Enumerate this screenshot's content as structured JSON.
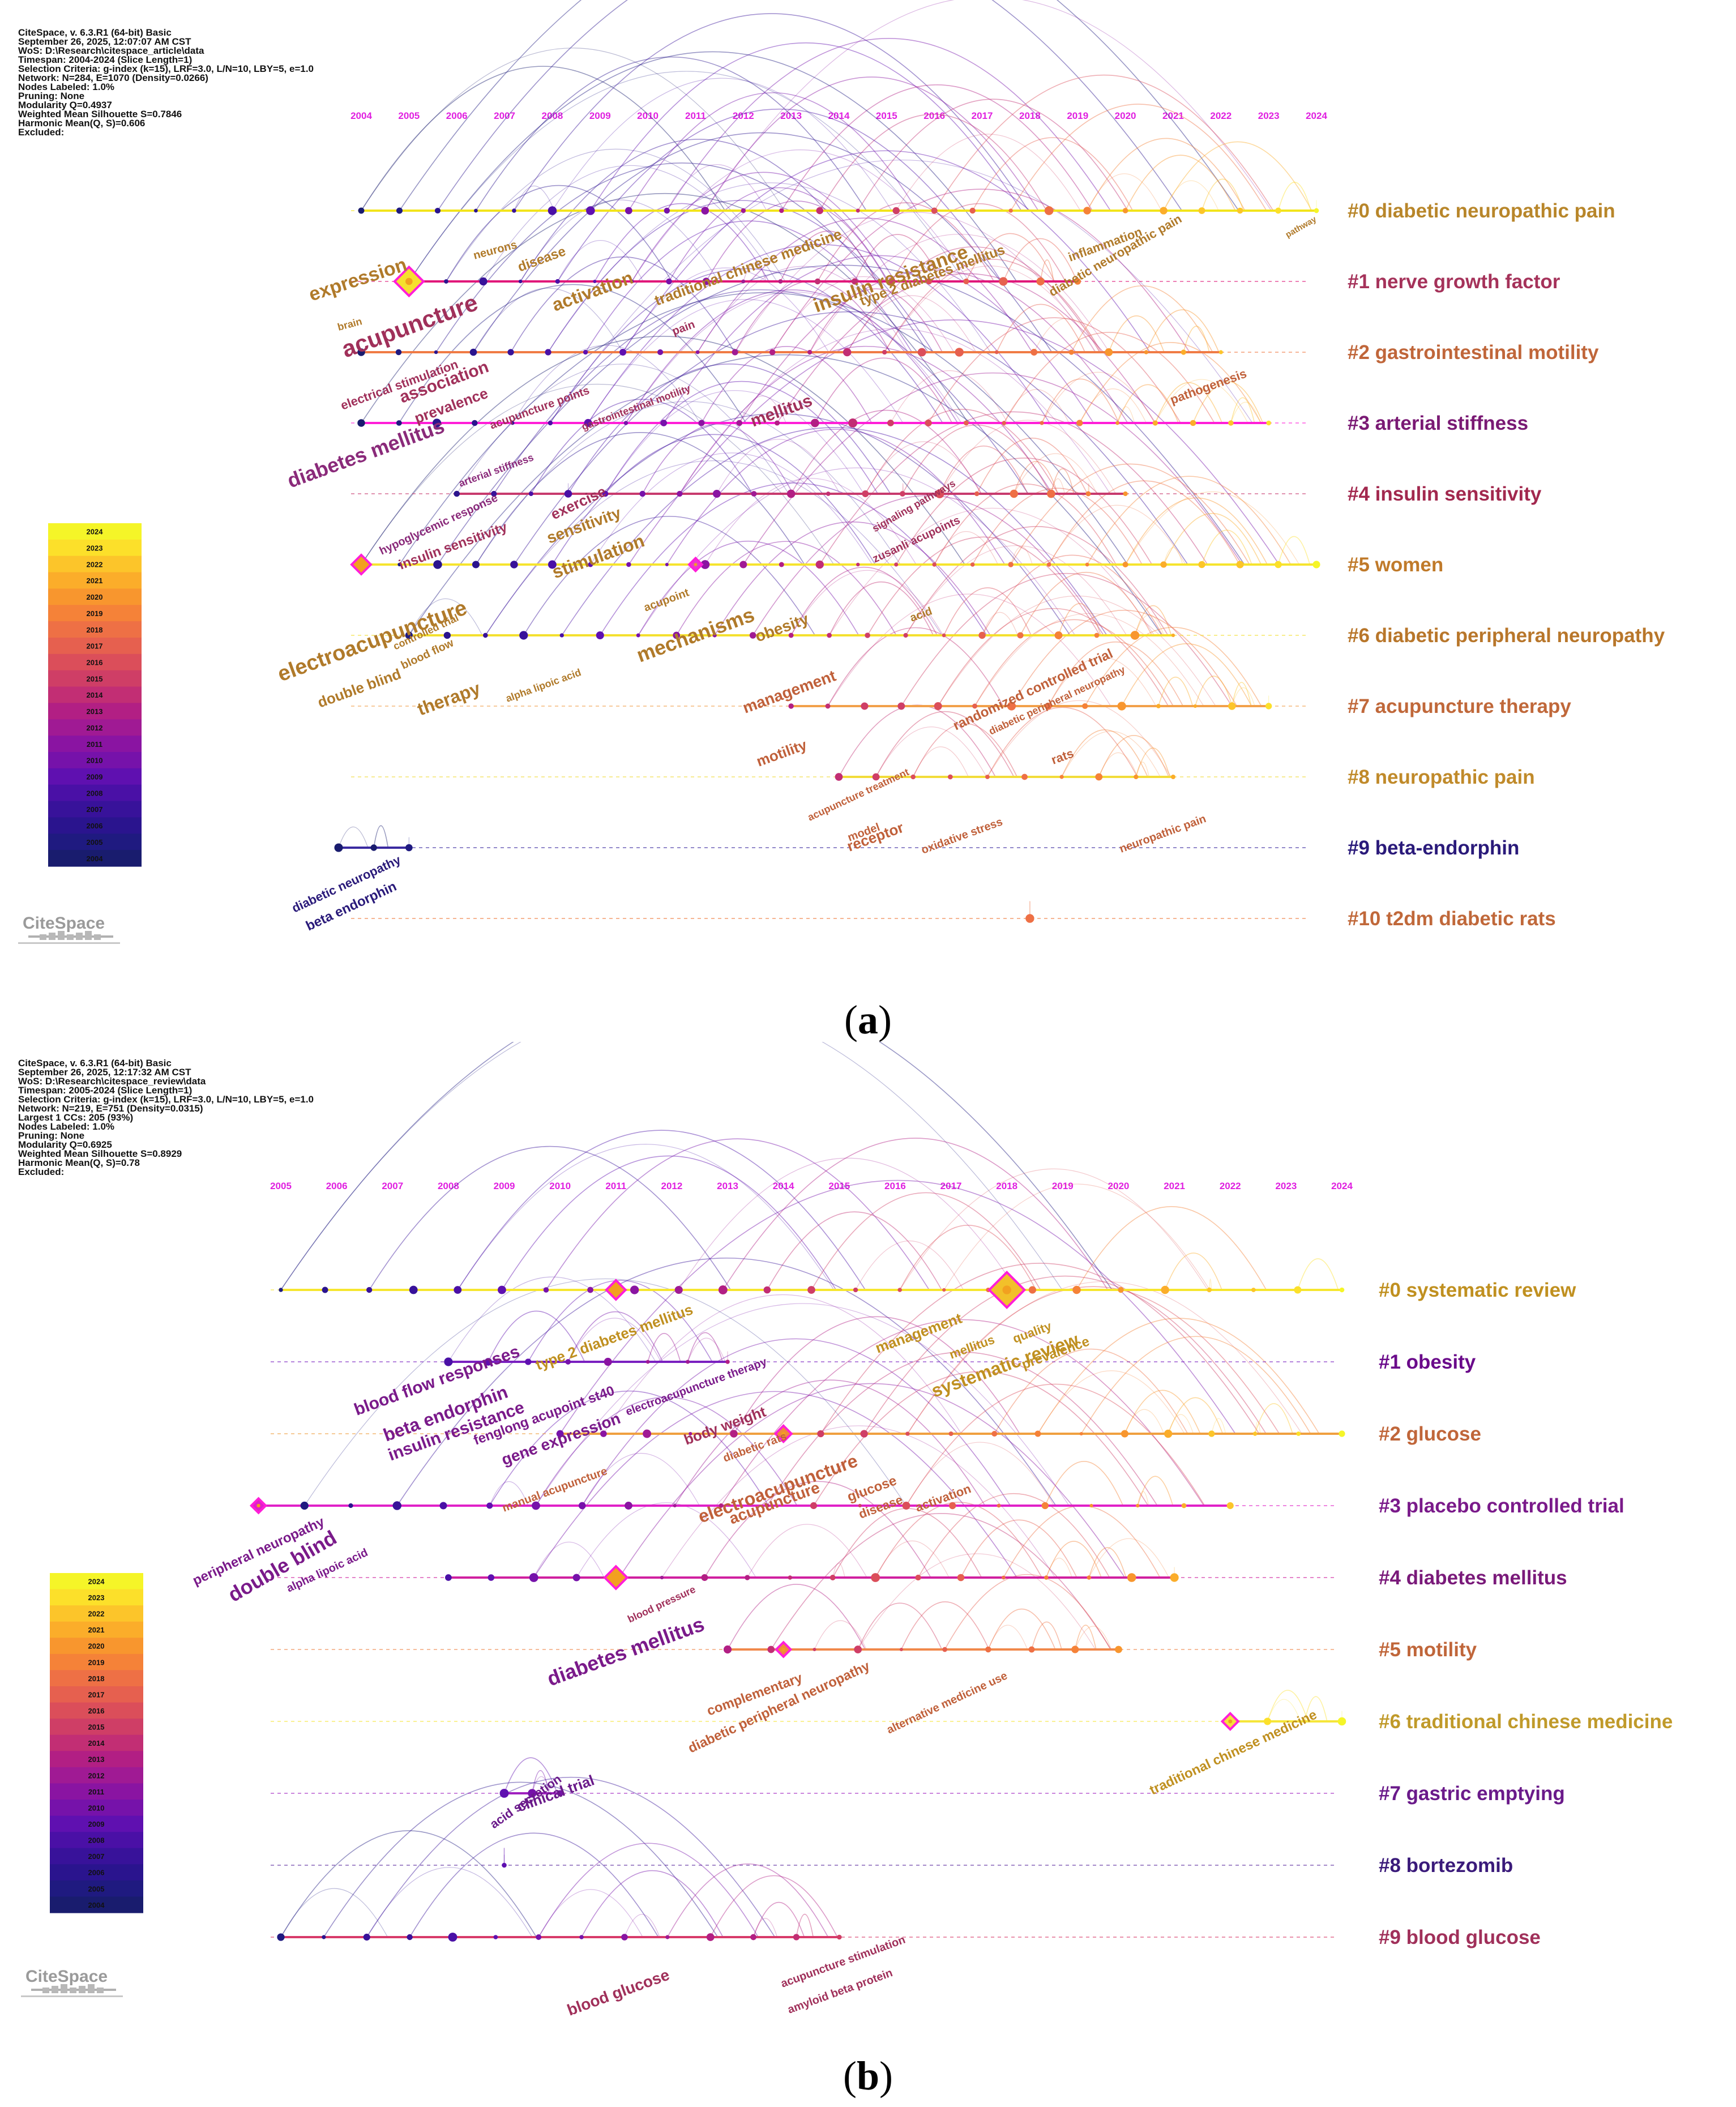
{
  "panels": {
    "a": {
      "label": "a",
      "meta": [
        "CiteSpace, v. 6.3.R1 (64-bit) Basic",
        "September 26, 2025, 12:07:07 AM CST",
        "WoS: D:\\Research\\citespace_article\\data",
        "Timespan: 2004-2024 (Slice Length=1)",
        "Selection Criteria: g-index (k=15), LRF=3.0, L/N=10, LBY=5, e=1.0",
        "Network: N=284, E=1070 (Density=0.0266)",
        "Nodes Labeled: 1.0%",
        "Pruning: None",
        "Modularity Q=0.4937",
        "Weighted Mean Silhouette S=0.7846",
        "Harmonic Mean(Q, S)=0.606",
        "Excluded:"
      ],
      "years": [
        "2004",
        "2005",
        "2006",
        "2007",
        "2008",
        "2009",
        "2010",
        "2011",
        "2012",
        "2013",
        "2014",
        "2015",
        "2016",
        "2017",
        "2018",
        "2019",
        "2020",
        "2021",
        "2022",
        "2023",
        "2024"
      ],
      "clusters": [
        {
          "label": "#0 diabetic neuropathic pain",
          "color": "#b8862a",
          "line": "#f2e41c",
          "start": 0,
          "end": 20
        },
        {
          "label": "#1 nerve growth factor",
          "color": "#a5325a",
          "line": "#e0187a",
          "start": 1,
          "end": 15
        },
        {
          "label": "#2 gastrointestinal motility",
          "color": "#c0663a",
          "line": "#f07b45",
          "start": 0,
          "end": 18
        },
        {
          "label": "#3 arterial stiffness",
          "color": "#7a1a74",
          "line": "#ff1ed8",
          "start": 0,
          "end": 19
        },
        {
          "label": "#4 insulin sensitivity",
          "color": "#a2284e",
          "line": "#c83a6e",
          "start": 2,
          "end": 16
        },
        {
          "label": "#5 women",
          "color": "#c07a2a",
          "line": "#f6e42e",
          "start": 0,
          "end": 20
        },
        {
          "label": "#6 diabetic peripheral neuropathy",
          "color": "#b8762a",
          "line": "#f4e02e",
          "start": 1,
          "end": 17
        },
        {
          "label": "#7 acupuncture therapy",
          "color": "#c0683a",
          "line": "#f2a04a",
          "start": 9,
          "end": 19
        },
        {
          "label": "#8 neuropathic pain",
          "color": "#c08a2a",
          "line": "#f2dc3a",
          "start": 10,
          "end": 17
        },
        {
          "label": "#9 beta-endorphin",
          "color": "#2a1a7a",
          "line": "#3a2aa0",
          "start": -1,
          "end": 1
        },
        {
          "label": "#10 t2dm diabetic rats",
          "color": "#c0683a",
          "line": "#f07a3a",
          "start": 14,
          "end": 14
        }
      ],
      "keywords": [
        {
          "text": "expression",
          "color": "#b07a2a"
        },
        {
          "text": "brain",
          "color": "#b07a2a"
        },
        {
          "text": "neurons",
          "color": "#b07a2a"
        },
        {
          "text": "disease",
          "color": "#b07a2a"
        },
        {
          "text": "activation",
          "color": "#b07a2a"
        },
        {
          "text": "traditional chinese medicine",
          "color": "#b07a2a"
        },
        {
          "text": "insulin resistance",
          "color": "#b07a2a"
        },
        {
          "text": "type 2 diabetes mellitus",
          "color": "#b07a2a"
        },
        {
          "text": "inflammation",
          "color": "#b07a2a"
        },
        {
          "text": "diabetic neuropathic pain",
          "color": "#b07a2a"
        },
        {
          "text": "pathway",
          "color": "#b07a2a"
        },
        {
          "text": "acupuncture",
          "color": "#a0305a"
        },
        {
          "text": "electrical stimulation",
          "color": "#a0305a"
        },
        {
          "text": "association",
          "color": "#a0305a"
        },
        {
          "text": "prevalence",
          "color": "#a0305a"
        },
        {
          "text": "acupuncture points",
          "color": "#a0305a"
        },
        {
          "text": "gastrointestinal motility",
          "color": "#a0305a"
        },
        {
          "text": "pain",
          "color": "#a0305a"
        },
        {
          "text": "mellitus",
          "color": "#a0305a"
        },
        {
          "text": "pathogenesis",
          "color": "#c0603a"
        },
        {
          "text": "diabetes mellitus",
          "color": "#8a2a7a"
        },
        {
          "text": "arterial stiffness",
          "color": "#8a2a7a"
        },
        {
          "text": "hypoglycemic response",
          "color": "#8a2a7a"
        },
        {
          "text": "insulin sensitivity",
          "color": "#a0305a"
        },
        {
          "text": "exercise",
          "color": "#a0305a"
        },
        {
          "text": "sensitivity",
          "color": "#b07a2a"
        },
        {
          "text": "stimulation",
          "color": "#b07a2a"
        },
        {
          "text": "signaling pathways",
          "color": "#a0305a"
        },
        {
          "text": "zusanli acupoints",
          "color": "#a0305a"
        },
        {
          "text": "electroacupuncture",
          "color": "#b07a2a"
        },
        {
          "text": "acupoint",
          "color": "#b07a2a"
        },
        {
          "text": "mechanisms",
          "color": "#b07a2a"
        },
        {
          "text": "obesity",
          "color": "#b07a2a"
        },
        {
          "text": "acid",
          "color": "#b07a2a"
        },
        {
          "text": "controlled trial",
          "color": "#b07a2a"
        },
        {
          "text": "blood flow",
          "color": "#b07a2a"
        },
        {
          "text": "double blind",
          "color": "#b07a2a"
        },
        {
          "text": "therapy",
          "color": "#b07a2a"
        },
        {
          "text": "alpha lipoic acid",
          "color": "#b07a2a"
        },
        {
          "text": "management",
          "color": "#c0603a"
        },
        {
          "text": "randomized controlled trial",
          "color": "#c0603a"
        },
        {
          "text": "diabetic peripheral neuropathy",
          "color": "#c0603a"
        },
        {
          "text": "motility",
          "color": "#c0603a"
        },
        {
          "text": "acupuncture treatment",
          "color": "#c0603a"
        },
        {
          "text": "model",
          "color": "#c0603a"
        },
        {
          "text": "receptor",
          "color": "#c0603a"
        },
        {
          "text": "oxidative stress",
          "color": "#c0603a"
        },
        {
          "text": "rats",
          "color": "#c0603a"
        },
        {
          "text": "neuropathic pain",
          "color": "#c0603a"
        },
        {
          "text": "diabetic neuropathy",
          "color": "#2a1a7a"
        },
        {
          "text": "beta endorphin",
          "color": "#2a1a7a"
        }
      ]
    },
    "b": {
      "label": "b",
      "meta": [
        "CiteSpace, v. 6.3.R1 (64-bit) Basic",
        "September 26, 2025, 12:17:32 AM CST",
        "WoS: D:\\Research\\citespace_review\\data",
        "Timespan: 2005-2024 (Slice Length=1)",
        "Selection Criteria: g-index (k=15), LRF=3.0, L/N=10, LBY=5, e=1.0",
        "Network: N=219, E=751 (Density=0.0315)",
        "Largest 1 CCs: 205 (93%)",
        "Nodes Labeled: 1.0%",
        "Pruning: None",
        "Modularity Q=0.6925",
        "Weighted Mean Silhouette S=0.8929",
        "Harmonic Mean(Q, S)=0.78",
        "Excluded:"
      ],
      "years": [
        "2005",
        "2006",
        "2007",
        "2008",
        "2009",
        "2010",
        "2011",
        "2012",
        "2013",
        "2014",
        "2015",
        "2016",
        "2017",
        "2018",
        "2019",
        "2020",
        "2021",
        "2022",
        "2023",
        "2024"
      ],
      "clusters": [
        {
          "label": "#0 systematic review",
          "color": "#c09020",
          "line": "#f6e62e",
          "start": 0,
          "end": 19
        },
        {
          "label": "#1 obesity",
          "color": "#6a0a8a",
          "line": "#7a20c0",
          "start": 3,
          "end": 8
        },
        {
          "label": "#2 glucose",
          "color": "#c0663a",
          "line": "#f0a040",
          "start": 5,
          "end": 19
        },
        {
          "label": "#3 placebo controlled trial",
          "color": "#7a1a8a",
          "line": "#e020c8",
          "start": -1,
          "end": 17
        },
        {
          "label": "#4 diabetes mellitus",
          "color": "#7a1a7a",
          "line": "#d020a0",
          "start": 3,
          "end": 16
        },
        {
          "label": "#5 motility",
          "color": "#c0663a",
          "line": "#f0884a",
          "start": 8,
          "end": 15
        },
        {
          "label": "#6 traditional chinese medicine",
          "color": "#c09a2a",
          "line": "#f6e63a",
          "start": 17,
          "end": 19
        },
        {
          "label": "#7 gastric emptying",
          "color": "#6a1a8a",
          "line": "#a020c0",
          "start": 4,
          "end": 5
        },
        {
          "label": "#8 bortezomib",
          "color": "#3a1a7a",
          "line": "#5a2aa0",
          "start": 4,
          "end": 4
        },
        {
          "label": "#9 blood glucose",
          "color": "#a0305a",
          "line": "#d83a6a",
          "start": 0,
          "end": 10
        }
      ],
      "keywords": [
        {
          "text": "management",
          "color": "#c09020"
        },
        {
          "text": "quality",
          "color": "#c09020"
        },
        {
          "text": "mellitus",
          "color": "#c09020"
        },
        {
          "text": "systematic review",
          "color": "#c09020"
        },
        {
          "text": "prevalence",
          "color": "#c09020"
        },
        {
          "text": "type 2 diabetes mellitus",
          "color": "#c09020"
        },
        {
          "text": "blood flow responses",
          "color": "#7a1a8a"
        },
        {
          "text": "beta endorphin",
          "color": "#7a1a8a"
        },
        {
          "text": "insulin resistance",
          "color": "#7a1a8a"
        },
        {
          "text": "fenglong acupoint st40",
          "color": "#7a1a8a"
        },
        {
          "text": "gene expression",
          "color": "#7a1a8a"
        },
        {
          "text": "electroacupuncture therapy",
          "color": "#7a1a8a"
        },
        {
          "text": "body weight",
          "color": "#a0305a"
        },
        {
          "text": "diabetic rats",
          "color": "#c0603a"
        },
        {
          "text": "manual acupuncture",
          "color": "#c0603a"
        },
        {
          "text": "electroacupuncture",
          "color": "#c0603a"
        },
        {
          "text": "acupuncture",
          "color": "#c0603a"
        },
        {
          "text": "glucose",
          "color": "#c0603a"
        },
        {
          "text": "disease",
          "color": "#c0603a"
        },
        {
          "text": "activation",
          "color": "#c0603a"
        },
        {
          "text": "peripheral neuropathy",
          "color": "#7a1a8a"
        },
        {
          "text": "double blind",
          "color": "#7a1a8a"
        },
        {
          "text": "alpha lipoic acid",
          "color": "#7a1a8a"
        },
        {
          "text": "diabetes mellitus",
          "color": "#7a1a8a"
        },
        {
          "text": "blood pressure",
          "color": "#a0305a"
        },
        {
          "text": "complementary",
          "color": "#c0603a"
        },
        {
          "text": "diabetic peripheral neuropathy",
          "color": "#c0603a"
        },
        {
          "text": "alternative medicine use",
          "color": "#c0603a"
        },
        {
          "text": "traditional chinese medicine",
          "color": "#c09020"
        },
        {
          "text": "acid secretion",
          "color": "#6a1a8a"
        },
        {
          "text": "clinical trial",
          "color": "#6a1a8a"
        },
        {
          "text": "blood glucose",
          "color": "#a0305a"
        },
        {
          "text": "acupuncture stimulation",
          "color": "#a0305a"
        },
        {
          "text": "amyloid beta protein",
          "color": "#a0305a"
        }
      ]
    }
  },
  "legend": {
    "years_desc": [
      "2024",
      "2023",
      "2022",
      "2021",
      "2020",
      "2019",
      "2018",
      "2017",
      "2016",
      "2015",
      "2014",
      "2013",
      "2012",
      "2011",
      "2010",
      "2009",
      "2008",
      "2007",
      "2006",
      "2005",
      "2004"
    ],
    "colors_desc": [
      "#f5f528",
      "#fce02a",
      "#fcc52a",
      "#fbad2a",
      "#f8962e",
      "#f58238",
      "#ee7045",
      "#e6604f",
      "#db4e5a",
      "#cf3e66",
      "#c22e74",
      "#b21f84",
      "#a01a94",
      "#8a14a2",
      "#7612aa",
      "#5f10b0",
      "#4a10a6",
      "#38129a",
      "#2a148e",
      "#1f1a80",
      "#191c6e"
    ],
    "logo": "CiteSpace"
  },
  "a_layout": {
    "keyword_placement": []
  }
}
